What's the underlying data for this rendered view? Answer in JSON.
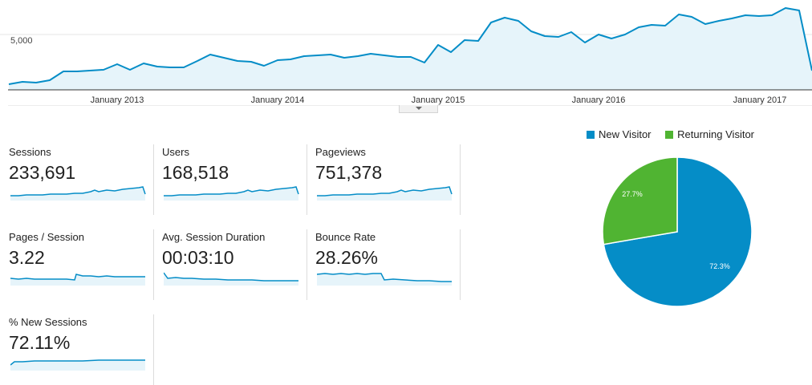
{
  "overview_chart": {
    "y_tick_label": "5,000",
    "x_tick_labels": [
      "January 2013",
      "January 2014",
      "January 2015",
      "January 2016",
      "January 2017"
    ],
    "line_color": "#058dc7",
    "fill_color": "#e6f4fa"
  },
  "metrics": [
    {
      "label": "Sessions",
      "value": "233,691"
    },
    {
      "label": "Users",
      "value": "168,518"
    },
    {
      "label": "Pageviews",
      "value": "751,378"
    },
    {
      "label": "Pages / Session",
      "value": "3.22"
    },
    {
      "label": "Avg. Session Duration",
      "value": "00:03:10"
    },
    {
      "label": "Bounce Rate",
      "value": "28.26%"
    },
    {
      "label": "% New Sessions",
      "value": "72.11%"
    }
  ],
  "visitor_pie": {
    "legend": [
      {
        "label": "New Visitor",
        "color": "#058dc7"
      },
      {
        "label": "Returning Visitor",
        "color": "#50b432"
      }
    ],
    "slices": [
      {
        "label": "72.3%",
        "value": 72.3,
        "color": "#058dc7"
      },
      {
        "label": "27.7%",
        "value": 27.7,
        "color": "#50b432"
      }
    ]
  }
}
